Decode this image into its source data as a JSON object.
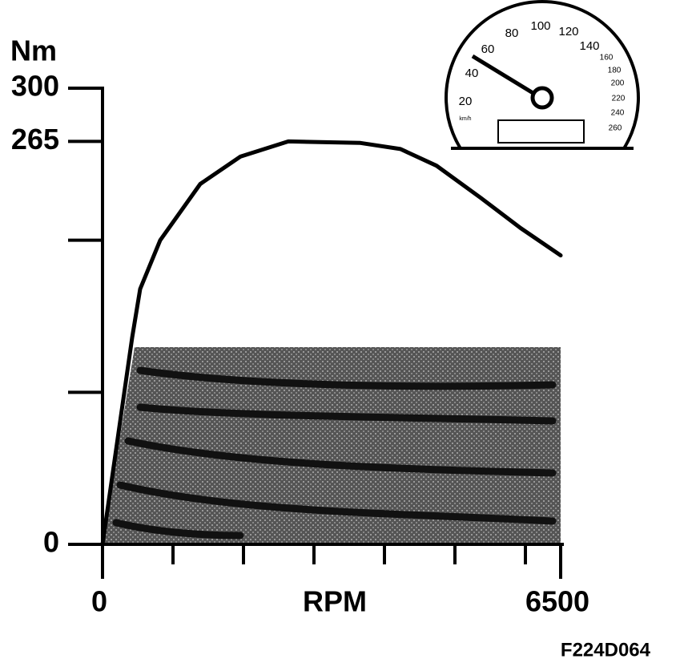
{
  "chart_data": {
    "type": "line",
    "y_label": "Nm",
    "x_label": "RPM",
    "figure_code": "F224D064",
    "x": [
      0,
      420,
      534,
      818,
      1386,
      1955,
      2636,
      3659,
      4227,
      4739,
      5364,
      5932,
      6500
    ],
    "values": [
      0,
      136,
      168,
      200,
      237,
      255,
      265,
      264,
      260,
      249,
      228,
      208,
      190
    ],
    "color": "#000000",
    "xlim": [
      0,
      6500
    ],
    "xticks": [
      0,
      6500
    ],
    "minor_xticks": [
      1000,
      2000,
      3000,
      4000,
      5000,
      6000
    ],
    "ylim": [
      0,
      300
    ],
    "yticks": [
      0,
      265,
      300
    ],
    "minor_yticks": [
      100,
      200
    ]
  },
  "speedometer": {
    "labels": [
      "20",
      "40",
      "60",
      "80",
      "100",
      "120",
      "140",
      "160",
      "180",
      "200",
      "220",
      "240",
      "260"
    ],
    "unit": "km/h"
  }
}
